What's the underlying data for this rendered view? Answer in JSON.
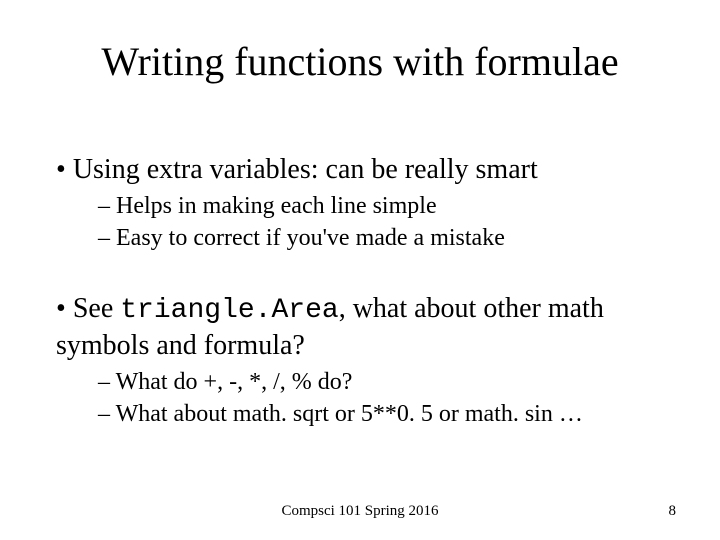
{
  "title": "Writing functions with formulae",
  "bullets": {
    "b1": {
      "mark": "•",
      "text": "Using extra variables: can be really smart",
      "sub": {
        "s1": {
          "mark": "–",
          "text": "Helps in making each line simple"
        },
        "s2": {
          "mark": "–",
          "text": "Easy to correct if you've made a mistake"
        }
      }
    },
    "b2": {
      "mark": "•",
      "pre": "See ",
      "code": "triangle.Area",
      "post": ", what about other math symbols and formula?",
      "sub": {
        "s1": {
          "mark": "–",
          "text": "What do +, -, *, /, % do?"
        },
        "s2": {
          "mark": "–",
          "text": "What about math. sqrt or 5**0. 5 or math. sin …"
        }
      }
    }
  },
  "footer": {
    "center": "Compsci 101 Spring 2016",
    "page": "8"
  },
  "style": {
    "background_color": "#ffffff",
    "text_color": "#000000",
    "title_fontsize": 40,
    "l1_fontsize": 28,
    "l2_fontsize": 24,
    "footer_fontsize": 15,
    "font_family_body": "Times New Roman",
    "font_family_code": "Courier New"
  }
}
